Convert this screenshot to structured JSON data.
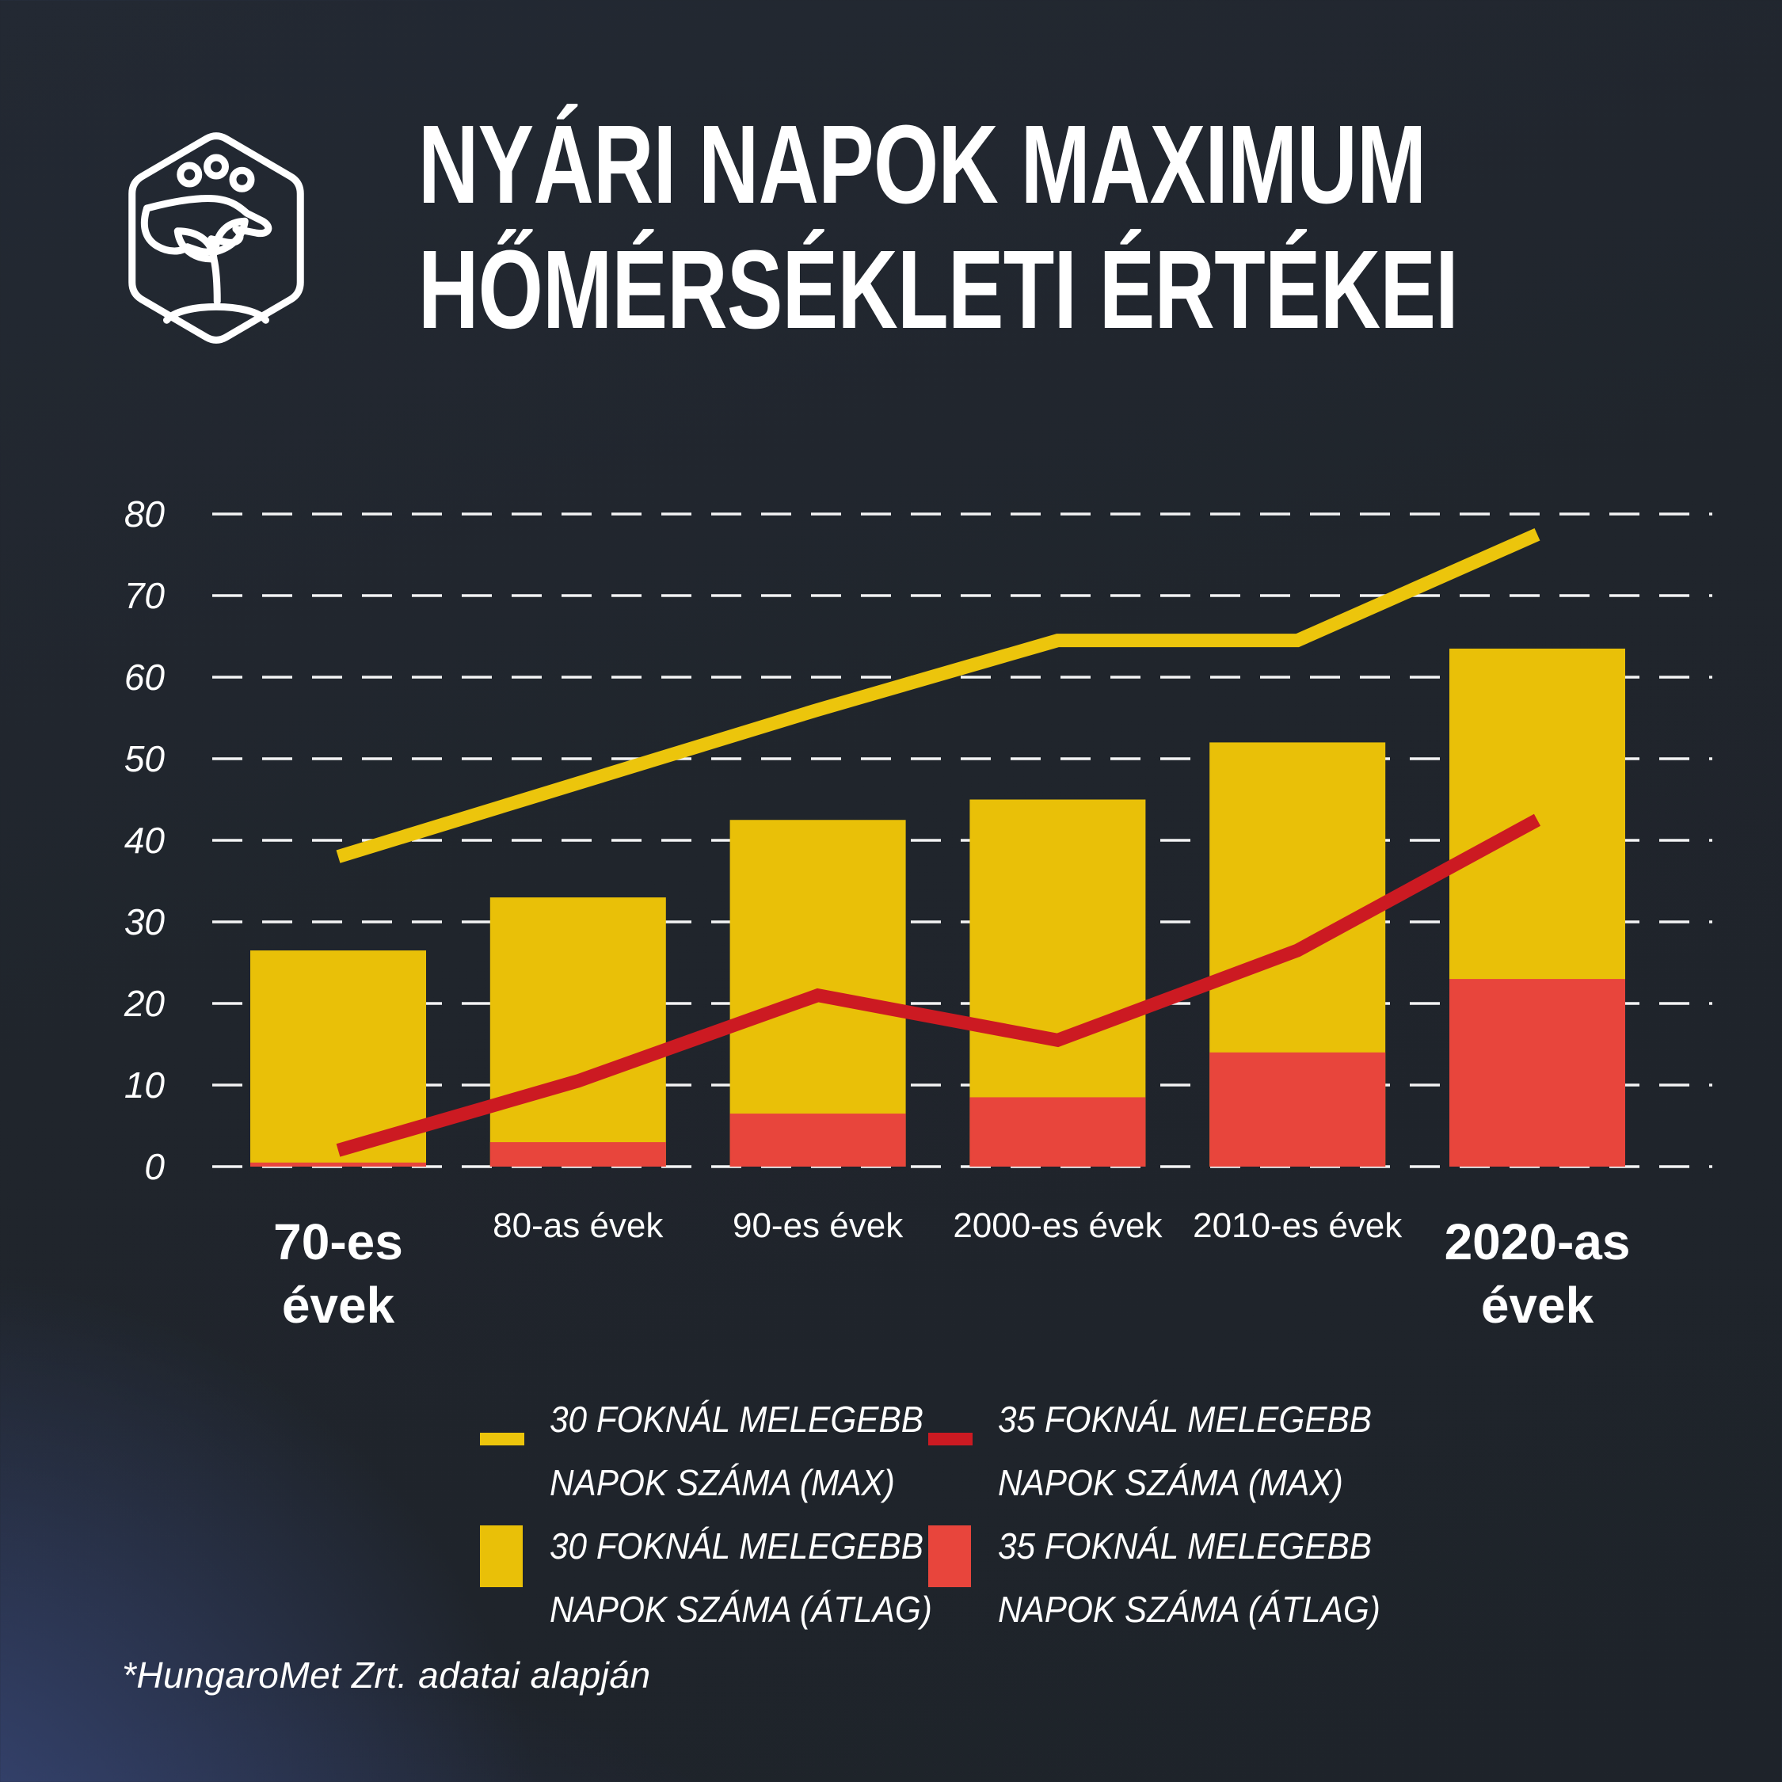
{
  "header": {
    "title_line1": "NYÁRI NAPOK MAXIMUM",
    "title_line2": "HŐMÉRSÉKLETI ÉRTÉKEI",
    "logo_icon": "hand-planting-seeds-in-hexagon"
  },
  "chart_data": {
    "type": "bar",
    "subtype": "stacked bars with two line series overlay",
    "categories": [
      "70-es évek",
      "80-as évek",
      "90-es évek",
      "2000-es évek",
      "2010-es évek",
      "2020-as évek"
    ],
    "category_lines": [
      [
        "70-es",
        "évek"
      ],
      [
        "80-as évek"
      ],
      [
        "90-es évek"
      ],
      [
        "2000-es évek"
      ],
      [
        "2010-es évek"
      ],
      [
        "2020-as",
        "évek"
      ]
    ],
    "category_emphasis": [
      true,
      false,
      false,
      false,
      false,
      true
    ],
    "series": [
      {
        "id": "line-30-max",
        "name": "30 FOKNÁL MELEGEBB NAPOK SZÁMA (MAX)",
        "type": "line",
        "color": "#ECC50C",
        "values": [
          38,
          47,
          56,
          64.5,
          64.5,
          77.5
        ]
      },
      {
        "id": "line-35-max",
        "name": "35 FOKNÁL MELEGEBB NAPOK SZÁMA (MAX)",
        "type": "line",
        "color": "#CC1A22",
        "values": [
          2,
          10.5,
          21,
          15.5,
          26.5,
          42.5
        ]
      },
      {
        "id": "bar-30-avg",
        "name": "30 FOKNÁL MELEGEBB NAPOK SZÁMA (ÁTLAG)",
        "type": "bar",
        "color": "#E9C008",
        "values": [
          26.5,
          33,
          42.5,
          45,
          52,
          63.5
        ]
      },
      {
        "id": "bar-35-avg",
        "name": "35 FOKNÁL MELEGEBB NAPOK SZÁMA (ÁTLAG)",
        "type": "bar",
        "color": "#E8453C",
        "values": [
          0.5,
          3,
          6.5,
          8.5,
          14,
          23
        ]
      }
    ],
    "title": "NYÁRI NAPOK MAXIMUM HŐMÉRSÉKLETI ÉRTÉKEI",
    "xlabel": "",
    "ylabel": "",
    "ylim": [
      0,
      80
    ],
    "yticks": [
      0,
      10,
      20,
      30,
      40,
      50,
      60,
      70,
      80
    ],
    "grid": "horizontal dashed white lines",
    "legend_position": "below chart, two columns"
  },
  "legend": {
    "items": [
      {
        "label_line1": "30 FOKNÁL MELEGEBB",
        "label_line2": "NAPOK SZÁMA (MAX)",
        "swatch": "line",
        "color": "#ECC50C"
      },
      {
        "label_line1": "35 FOKNÁL MELEGEBB",
        "label_line2": "NAPOK SZÁMA (MAX)",
        "swatch": "line",
        "color": "#CC1A22"
      },
      {
        "label_line1": "30 FOKNÁL MELEGEBB",
        "label_line2": "NAPOK SZÁMA (ÁTLAG)",
        "swatch": "rect",
        "color": "#E9C008"
      },
      {
        "label_line1": "35 FOKNÁL MELEGEBB",
        "label_line2": "NAPOK SZÁMA (ÁTLAG)",
        "swatch": "rect",
        "color": "#E8453C"
      }
    ]
  },
  "footer": {
    "source_note": "*HungaroMet Zrt. adatai alapján"
  },
  "colors": {
    "background": "#20252C",
    "background_glow": "#3E508C",
    "text": "#FFFFFF",
    "gridline": "#FFFFFF",
    "yellow": "#E9C008",
    "red_bar": "#E8453C",
    "red_line": "#CC1A22"
  }
}
